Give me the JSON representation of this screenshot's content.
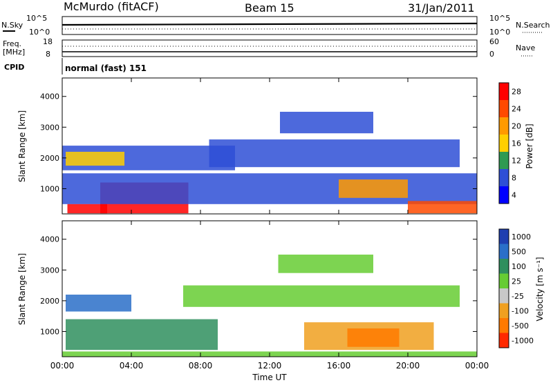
{
  "header": {
    "station": "McMurdo (fitACF)",
    "beam": "Beam 15",
    "date": "31/Jan/2011"
  },
  "status_panels": {
    "nsky_label": "N.Sky",
    "nsky_ticks": [
      "10^5",
      "10^0"
    ],
    "nsearch_label": "N.Search",
    "nsearch_ticks": [
      "10^5",
      "10^0"
    ],
    "freq_label": "Freq.",
    "freq_unit": "[MHz]",
    "freq_ticks": [
      "18",
      "8"
    ],
    "nave_label": "Nave",
    "nave_ticks": [
      "60",
      "0"
    ],
    "cpid_label": "CPID",
    "cpid_value": "normal (fast) 151"
  },
  "chart_data": [
    {
      "type": "heatmap",
      "name": "power",
      "ylabel": "Slant Range [km]",
      "ylim": [
        180,
        4600
      ],
      "yticks": [
        1000,
        2000,
        3000,
        4000
      ],
      "xlim": [
        0,
        24
      ],
      "xticks": [
        "00:00",
        "04:00",
        "08:00",
        "12:00",
        "16:00",
        "20:00",
        "00:00"
      ],
      "colorbar_label": "Power [dB]",
      "colorbar_ticks": [
        "28",
        "24",
        "20",
        "16",
        "12",
        "8",
        "4"
      ],
      "colorbar_colors": [
        "#ff0000",
        "#ff4a00",
        "#ff9a00",
        "#ffcf00",
        "#2f9a52",
        "#2e4fd6",
        "#0000ff"
      ],
      "bands": [
        {
          "t_start": 0.3,
          "t_end": 2.6,
          "range_low": 200,
          "range_high": 500,
          "level": "28"
        },
        {
          "t_start": 2.2,
          "t_end": 7.3,
          "range_low": 200,
          "range_high": 1200,
          "level": "28"
        },
        {
          "t_start": 0.0,
          "t_end": 24.0,
          "range_low": 500,
          "range_high": 1500,
          "level": "8"
        },
        {
          "t_start": 0.0,
          "t_end": 10.0,
          "range_low": 1600,
          "range_high": 2400,
          "level": "8"
        },
        {
          "t_start": 0.2,
          "t_end": 3.6,
          "range_low": 1750,
          "range_high": 2200,
          "level": "16"
        },
        {
          "t_start": 8.5,
          "t_end": 23.0,
          "range_low": 1700,
          "range_high": 2600,
          "level": "8"
        },
        {
          "t_start": 12.6,
          "t_end": 18.0,
          "range_low": 2800,
          "range_high": 3500,
          "level": "8"
        },
        {
          "t_start": 16.0,
          "t_end": 20.0,
          "range_low": 700,
          "range_high": 1300,
          "level": "20"
        },
        {
          "t_start": 20.0,
          "t_end": 24.0,
          "range_low": 200,
          "range_high": 600,
          "level": "24"
        }
      ]
    },
    {
      "type": "heatmap",
      "name": "velocity",
      "ylabel": "Slant Range [km]",
      "ylim": [
        180,
        4600
      ],
      "yticks": [
        1000,
        2000,
        3000,
        4000
      ],
      "xlim": [
        0,
        24
      ],
      "xticks": [
        "00:00",
        "04:00",
        "08:00",
        "12:00",
        "16:00",
        "20:00",
        "00:00"
      ],
      "xlabel": "Time UT",
      "colorbar_label": "Velocity [m s⁻¹]",
      "colorbar_ticks": [
        "1000",
        "500",
        "100",
        "25",
        "-25",
        "-100",
        "-500",
        "-1000"
      ],
      "colorbar_colors": [
        "#1f3fb0",
        "#2a6fc8",
        "#2f8f5e",
        "#66cc33",
        "#c8c8c8",
        "#f0a020",
        "#ff7a00",
        "#ff2a00"
      ],
      "bands": [
        {
          "t_start": 0.2,
          "t_end": 9.0,
          "range_low": 400,
          "range_high": 1400,
          "level": "100"
        },
        {
          "t_start": 0.2,
          "t_end": 4.0,
          "range_low": 1650,
          "range_high": 2200,
          "level": "500"
        },
        {
          "t_start": 7.0,
          "t_end": 23.0,
          "range_low": 1800,
          "range_high": 2500,
          "level": "25"
        },
        {
          "t_start": 12.5,
          "t_end": 18.0,
          "range_low": 2900,
          "range_high": 3500,
          "level": "25"
        },
        {
          "t_start": 14.0,
          "t_end": 21.5,
          "range_low": 400,
          "range_high": 1300,
          "level": "-100"
        },
        {
          "t_start": 16.5,
          "t_end": 19.5,
          "range_low": 500,
          "range_high": 1100,
          "level": "-500"
        },
        {
          "t_start": 0.0,
          "t_end": 24.0,
          "range_low": 180,
          "range_high": 350,
          "level": "25"
        }
      ]
    }
  ]
}
